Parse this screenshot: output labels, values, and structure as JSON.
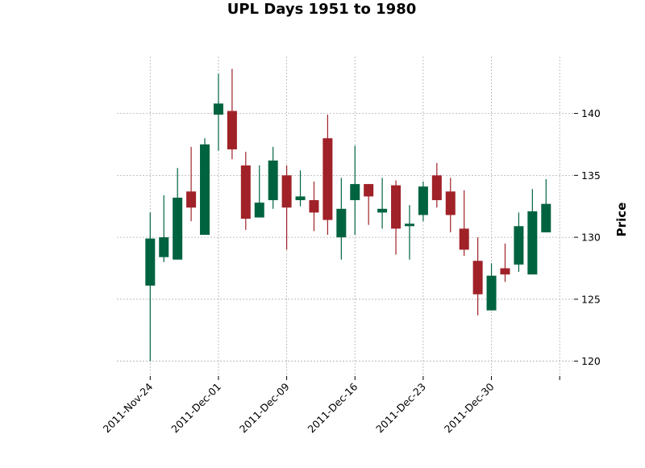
{
  "chart_data": {
    "type": "candlestick",
    "title": "UPL Days 1951 to 1980",
    "ylabel": "Price",
    "xlabel": "",
    "ylim": [
      118.8,
      144.6
    ],
    "y_ticks": [
      120,
      125,
      130,
      135,
      140
    ],
    "x_tick_labels": [
      {
        "index": 0,
        "label": "2011-Nov-24"
      },
      {
        "index": 5,
        "label": "2011-Dec-01"
      },
      {
        "index": 10,
        "label": "2011-Dec-09"
      },
      {
        "index": 15,
        "label": "2011-Dec-16"
      },
      {
        "index": 20,
        "label": "2011-Dec-23"
      },
      {
        "index": 25,
        "label": "2011-Dec-30"
      },
      {
        "index": 30,
        "label": ""
      }
    ],
    "grid": true,
    "colors": {
      "up": "#006340",
      "down": "#a02128",
      "grid": "#b0b0b0"
    },
    "candles": [
      {
        "open": 126.1,
        "high": 132.0,
        "low": 120.0,
        "close": 129.9
      },
      {
        "open": 128.4,
        "high": 133.4,
        "low": 128.0,
        "close": 130.0
      },
      {
        "open": 128.2,
        "high": 135.6,
        "low": 128.2,
        "close": 133.2
      },
      {
        "open": 133.7,
        "high": 137.3,
        "low": 131.3,
        "close": 132.4
      },
      {
        "open": 130.2,
        "high": 138.0,
        "low": 130.2,
        "close": 137.5
      },
      {
        "open": 139.9,
        "high": 143.2,
        "low": 137.0,
        "close": 140.8
      },
      {
        "open": 140.2,
        "high": 143.6,
        "low": 136.3,
        "close": 137.1
      },
      {
        "open": 135.8,
        "high": 136.9,
        "low": 130.6,
        "close": 131.5
      },
      {
        "open": 131.6,
        "high": 135.8,
        "low": 131.6,
        "close": 132.8
      },
      {
        "open": 133.0,
        "high": 137.3,
        "low": 132.3,
        "close": 136.2
      },
      {
        "open": 135.0,
        "high": 135.8,
        "low": 129.0,
        "close": 132.4
      },
      {
        "open": 133.0,
        "high": 135.4,
        "low": 132.5,
        "close": 133.3
      },
      {
        "open": 133.0,
        "high": 134.5,
        "low": 130.5,
        "close": 132.0
      },
      {
        "open": 138.0,
        "high": 139.9,
        "low": 130.2,
        "close": 131.4
      },
      {
        "open": 130.0,
        "high": 134.8,
        "low": 128.2,
        "close": 132.3
      },
      {
        "open": 133.0,
        "high": 137.4,
        "low": 130.2,
        "close": 134.3
      },
      {
        "open": 134.3,
        "high": 134.3,
        "low": 131.0,
        "close": 133.3
      },
      {
        "open": 132.0,
        "high": 134.8,
        "low": 130.7,
        "close": 132.3
      },
      {
        "open": 134.2,
        "high": 134.6,
        "low": 128.6,
        "close": 130.7
      },
      {
        "open": 130.9,
        "high": 132.6,
        "low": 128.2,
        "close": 131.1
      },
      {
        "open": 131.8,
        "high": 134.5,
        "low": 131.3,
        "close": 134.1
      },
      {
        "open": 135.0,
        "high": 136.0,
        "low": 132.4,
        "close": 133.0
      },
      {
        "open": 133.7,
        "high": 134.8,
        "low": 130.4,
        "close": 131.8
      },
      {
        "open": 130.7,
        "high": 133.8,
        "low": 128.5,
        "close": 129.0
      },
      {
        "open": 128.1,
        "high": 130.0,
        "low": 123.7,
        "close": 125.4
      },
      {
        "open": 124.1,
        "high": 127.9,
        "low": 124.1,
        "close": 126.9
      },
      {
        "open": 127.5,
        "high": 129.5,
        "low": 126.4,
        "close": 127.0
      },
      {
        "open": 127.8,
        "high": 132.0,
        "low": 127.2,
        "close": 130.9
      },
      {
        "open": 127.0,
        "high": 133.9,
        "low": 127.0,
        "close": 132.1
      },
      {
        "open": 130.4,
        "high": 134.7,
        "low": 130.4,
        "close": 132.7
      }
    ]
  }
}
